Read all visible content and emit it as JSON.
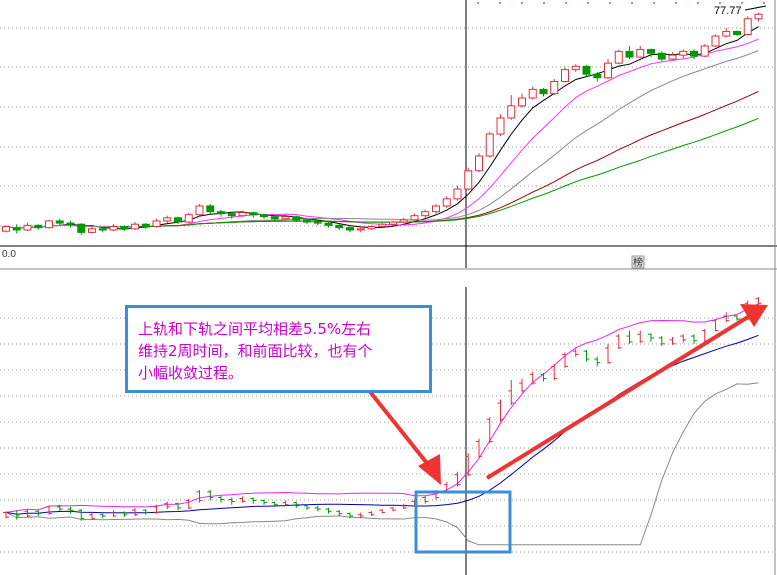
{
  "annotation": {
    "text": "上轨和下轨之间平均相差5.5%左右\n维持2周时间，和前面比较，也有个\n小幅收敛过程。"
  },
  "labels": {
    "last_price": "77.77",
    "axis_marker": "0.0",
    "badge": "榜"
  },
  "colors": {
    "up": "#e0303a",
    "down": "#009900",
    "ma_black": "#000000",
    "ma_magenta": "#ff33ff",
    "ma_gray": "#888888",
    "ma_darkred": "#990000",
    "ma_green": "#009900",
    "boll_upper": "#ee22ee",
    "boll_mid": "#0000aa",
    "boll_lower": "#888888",
    "highlight_box": "#3a8fd6",
    "arrow": "#ee3333",
    "grid": "#999999"
  },
  "chart_data": [
    {
      "type": "candlestick",
      "panel": "price",
      "title": "",
      "xlabel": "",
      "ylabel": "",
      "ylim": [
        0,
        80
      ],
      "last_price_label": 77.77,
      "grid": "dotted-horizontal",
      "candles": [
        [
          8.0,
          8.4,
          7.9,
          8.5
        ],
        [
          8.3,
          8.1,
          7.8,
          8.6
        ],
        [
          8.1,
          8.5,
          8.0,
          8.7
        ],
        [
          8.5,
          8.3,
          8.1,
          8.6
        ],
        [
          8.3,
          8.9,
          8.2,
          9.0
        ],
        [
          8.9,
          8.7,
          8.5,
          9.1
        ],
        [
          8.7,
          8.6,
          8.3,
          8.9
        ],
        [
          8.6,
          7.9,
          7.7,
          8.7
        ],
        [
          7.9,
          8.2,
          7.8,
          8.4
        ],
        [
          8.2,
          8.1,
          7.9,
          8.3
        ],
        [
          8.1,
          8.4,
          8.0,
          8.6
        ],
        [
          8.4,
          8.2,
          8.0,
          8.5
        ],
        [
          8.2,
          8.6,
          8.1,
          8.8
        ],
        [
          8.6,
          8.4,
          8.2,
          8.7
        ],
        [
          8.4,
          8.9,
          8.3,
          9.1
        ],
        [
          8.9,
          9.2,
          8.7,
          9.4
        ],
        [
          9.2,
          8.8,
          8.6,
          9.3
        ],
        [
          8.8,
          9.5,
          8.7,
          9.7
        ],
        [
          9.5,
          10.4,
          9.3,
          10.6
        ],
        [
          10.4,
          9.8,
          9.5,
          10.6
        ],
        [
          9.8,
          9.6,
          9.3,
          10.0
        ],
        [
          9.6,
          9.4,
          9.1,
          9.8
        ],
        [
          9.4,
          9.7,
          9.3,
          9.9
        ],
        [
          9.7,
          9.5,
          9.2,
          9.8
        ],
        [
          9.5,
          9.3,
          9.1,
          9.6
        ],
        [
          9.3,
          9.1,
          8.9,
          9.4
        ],
        [
          9.1,
          9.3,
          9.0,
          9.5
        ],
        [
          9.3,
          9.0,
          8.8,
          9.4
        ],
        [
          9.0,
          8.8,
          8.6,
          9.1
        ],
        [
          8.8,
          8.7,
          8.5,
          9.0
        ],
        [
          8.7,
          8.5,
          8.3,
          8.8
        ],
        [
          8.5,
          8.3,
          8.1,
          8.6
        ],
        [
          8.3,
          8.1,
          7.9,
          8.4
        ],
        [
          8.1,
          8.2,
          7.9,
          8.4
        ],
        [
          8.2,
          8.4,
          8.1,
          8.5
        ],
        [
          8.4,
          8.6,
          8.3,
          8.7
        ],
        [
          8.6,
          8.8,
          8.5,
          8.9
        ],
        [
          8.8,
          9.0,
          8.7,
          9.2
        ],
        [
          9.0,
          9.4,
          8.9,
          9.6
        ],
        [
          9.4,
          9.8,
          9.2,
          10.0
        ],
        [
          9.8,
          10.4,
          9.6,
          10.6
        ],
        [
          10.4,
          11.2,
          10.2,
          11.5
        ],
        [
          11.2,
          12.4,
          11.0,
          12.8
        ],
        [
          12.4,
          15.0,
          12.2,
          15.5
        ],
        [
          15.0,
          17.5,
          14.8,
          18.0
        ],
        [
          17.5,
          22.0,
          17.2,
          22.5
        ],
        [
          22.0,
          26.0,
          21.5,
          27.0
        ],
        [
          26.0,
          29.5,
          25.5,
          33.0
        ],
        [
          29.5,
          32.0,
          29.0,
          33.5
        ],
        [
          32.0,
          35.0,
          31.5,
          36.0
        ],
        [
          35.0,
          33.5,
          32.5,
          35.5
        ],
        [
          33.5,
          38.0,
          33.0,
          39.0
        ],
        [
          38.0,
          43.0,
          37.5,
          44.0
        ],
        [
          43.0,
          44.5,
          42.0,
          45.5
        ],
        [
          44.5,
          41.0,
          40.0,
          45.0
        ],
        [
          41.0,
          39.5,
          38.0,
          42.0
        ],
        [
          39.5,
          46.0,
          39.0,
          48.0
        ],
        [
          46.0,
          52.0,
          45.5,
          53.0
        ],
        [
          52.0,
          49.0,
          48.0,
          55.0
        ],
        [
          49.0,
          53.0,
          48.5,
          55.0
        ],
        [
          53.0,
          51.0,
          49.0,
          53.5
        ],
        [
          51.0,
          48.0,
          47.0,
          52.0
        ],
        [
          48.0,
          50.0,
          47.5,
          51.5
        ],
        [
          50.0,
          52.0,
          48.5,
          53.0
        ],
        [
          52.0,
          49.5,
          48.0,
          53.0
        ],
        [
          49.5,
          55.0,
          49.0,
          56.0
        ],
        [
          55.0,
          61.0,
          54.5,
          62.0
        ],
        [
          61.0,
          64.0,
          60.0,
          66.5
        ],
        [
          64.0,
          62.0,
          61.0,
          64.5
        ],
        [
          62.0,
          73.0,
          61.5,
          75.0
        ],
        [
          73.0,
          76.5,
          71.0,
          77.77
        ]
      ],
      "ma_series": [
        {
          "name": "",
          "color": "#000000"
        },
        {
          "name": "",
          "color": "#ff33ff"
        },
        {
          "name": "",
          "color": "#888888"
        },
        {
          "name": "",
          "color": "#990000"
        },
        {
          "name": "",
          "color": "#009900"
        }
      ]
    },
    {
      "type": "candlestick",
      "panel": "boll",
      "title": "",
      "xlabel": "",
      "ylabel": "",
      "series": [
        {
          "name": "",
          "color": "#ee22ee"
        },
        {
          "name": "",
          "color": "#0000aa"
        },
        {
          "name": "",
          "color": "#888888"
        }
      ]
    }
  ]
}
